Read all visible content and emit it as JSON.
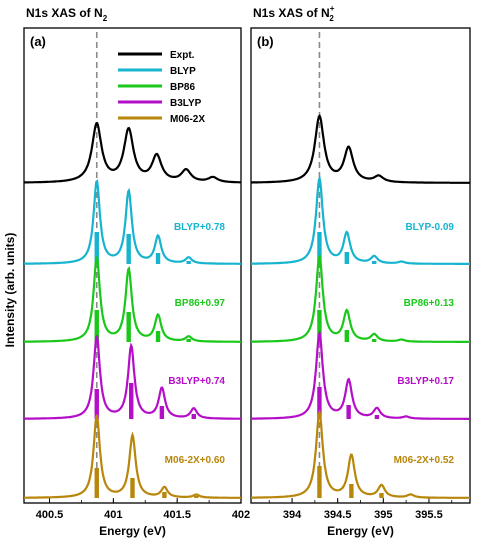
{
  "colors": {
    "expt": "#000000",
    "blyp": "#17b4d0",
    "bp86": "#19c819",
    "b3lyp": "#b40ec8",
    "m062x": "#b8860b",
    "guide": "#8a8a8a"
  },
  "ylabel": "Intensity (arb. units)",
  "chart_data": [
    {
      "type": "line",
      "panel_label": "(a)",
      "title": "N1s XAS of N",
      "title_sub": "2",
      "title_sup": "",
      "xlabel": "Energy (eV)",
      "xlim": [
        400.3,
        402.0
      ],
      "xticks": [
        "400.5",
        "401",
        "401.5",
        "402"
      ],
      "xtick_values": [
        400.5,
        401.0,
        401.5,
        402.0
      ],
      "grid": false,
      "legend_position": "top-right",
      "legend": [
        "Expt.",
        "BLYP",
        "BP86",
        "B3LYP",
        "M06-2X"
      ],
      "guide_energy": 400.87,
      "series": [
        {
          "name": "Expt.",
          "color_key": "expt",
          "label": "",
          "shift": 0,
          "peaks": [
            [
              400.87,
              0.58
            ],
            [
              401.12,
              0.52
            ],
            [
              401.34,
              0.26
            ],
            [
              401.57,
              0.12
            ],
            [
              401.78,
              0.05
            ]
          ],
          "width": 0.045,
          "sticks": []
        },
        {
          "name": "BLYP",
          "color_key": "blyp",
          "label": "BLYP+0.78",
          "shift": 0.78,
          "peaks": [
            [
              400.87,
              0.82
            ],
            [
              401.12,
              0.72
            ],
            [
              401.35,
              0.27
            ],
            [
              401.59,
              0.06
            ]
          ],
          "width": 0.03,
          "sticks": [
            [
              400.87,
              0.32
            ],
            [
              401.12,
              0.3
            ],
            [
              401.35,
              0.11
            ],
            [
              401.59,
              0.03
            ]
          ]
        },
        {
          "name": "BP86",
          "color_key": "bp86",
          "label": "BP86+0.97",
          "shift": 0.97,
          "peaks": [
            [
              400.87,
              0.84
            ],
            [
              401.12,
              0.72
            ],
            [
              401.35,
              0.26
            ],
            [
              401.59,
              0.05
            ]
          ],
          "width": 0.03,
          "sticks": [
            [
              400.87,
              0.32
            ],
            [
              401.12,
              0.3
            ],
            [
              401.35,
              0.11
            ],
            [
              401.59,
              0.03
            ]
          ]
        },
        {
          "name": "B3LYP",
          "color_key": "b3lyp",
          "label": "B3LYP+0.74",
          "shift": 0.74,
          "peaks": [
            [
              400.87,
              0.82
            ],
            [
              401.14,
              0.72
            ],
            [
              401.38,
              0.3
            ],
            [
              401.63,
              0.1
            ]
          ],
          "width": 0.03,
          "sticks": [
            [
              400.87,
              0.3
            ],
            [
              401.14,
              0.36
            ],
            [
              401.38,
              0.13
            ],
            [
              401.63,
              0.05
            ]
          ]
        },
        {
          "name": "M06-2X",
          "color_key": "m062x",
          "label": "M06-2X+0.60",
          "shift": 0.6,
          "peaks": [
            [
              400.87,
              0.82
            ],
            [
              401.15,
              0.62
            ],
            [
              401.4,
              0.1
            ],
            [
              401.65,
              0.03
            ]
          ],
          "width": 0.03,
          "sticks": [
            [
              400.87,
              0.3
            ],
            [
              401.15,
              0.2
            ],
            [
              401.4,
              0.06
            ],
            [
              401.65,
              0.02
            ]
          ]
        }
      ]
    },
    {
      "type": "line",
      "panel_label": "(b)",
      "title": "N1s XAS of N",
      "title_sub": "2",
      "title_sup": "+",
      "xlabel": "Energy (eV)",
      "xlim": [
        393.55,
        395.95
      ],
      "xticks": [
        "394",
        "394.5",
        "395",
        "395.5"
      ],
      "xtick_values": [
        394.0,
        394.5,
        395.0,
        395.5
      ],
      "grid": false,
      "legend_position": "",
      "legend": [],
      "guide_energy": 394.3,
      "series": [
        {
          "name": "Expt.",
          "color_key": "expt",
          "label": "",
          "shift": 0,
          "peaks": [
            [
              394.3,
              0.66
            ],
            [
              394.62,
              0.34
            ],
            [
              394.95,
              0.06
            ]
          ],
          "width": 0.06,
          "sticks": []
        },
        {
          "name": "BLYP",
          "color_key": "blyp",
          "label": "BLYP-0.09",
          "shift": -0.09,
          "peaks": [
            [
              394.3,
              0.85
            ],
            [
              394.6,
              0.3
            ],
            [
              394.9,
              0.07
            ],
            [
              395.2,
              0.02
            ]
          ],
          "width": 0.045,
          "sticks": [
            [
              394.3,
              0.32
            ],
            [
              394.6,
              0.12
            ],
            [
              394.9,
              0.03
            ]
          ]
        },
        {
          "name": "BP86",
          "color_key": "bp86",
          "label": "BP86+0.13",
          "shift": 0.13,
          "peaks": [
            [
              394.3,
              0.85
            ],
            [
              394.6,
              0.3
            ],
            [
              394.9,
              0.07
            ],
            [
              395.2,
              0.02
            ]
          ],
          "width": 0.045,
          "sticks": [
            [
              394.3,
              0.32
            ],
            [
              394.6,
              0.12
            ],
            [
              394.9,
              0.03
            ]
          ]
        },
        {
          "name": "B3LYP",
          "color_key": "b3lyp",
          "label": "B3LYP+0.17",
          "shift": 0.17,
          "peaks": [
            [
              394.3,
              0.85
            ],
            [
              394.62,
              0.38
            ],
            [
              394.93,
              0.1
            ],
            [
              395.25,
              0.02
            ]
          ],
          "width": 0.045,
          "sticks": [
            [
              394.3,
              0.32
            ],
            [
              394.62,
              0.14
            ],
            [
              394.93,
              0.04
            ]
          ]
        },
        {
          "name": "M06-2X",
          "color_key": "m062x",
          "label": "M06-2X+0.52",
          "shift": 0.52,
          "peaks": [
            [
              394.3,
              0.85
            ],
            [
              394.65,
              0.42
            ],
            [
              394.98,
              0.12
            ],
            [
              395.3,
              0.03
            ]
          ],
          "width": 0.045,
          "sticks": [
            [
              394.3,
              0.32
            ],
            [
              394.65,
              0.14
            ],
            [
              394.98,
              0.05
            ]
          ]
        }
      ]
    }
  ]
}
